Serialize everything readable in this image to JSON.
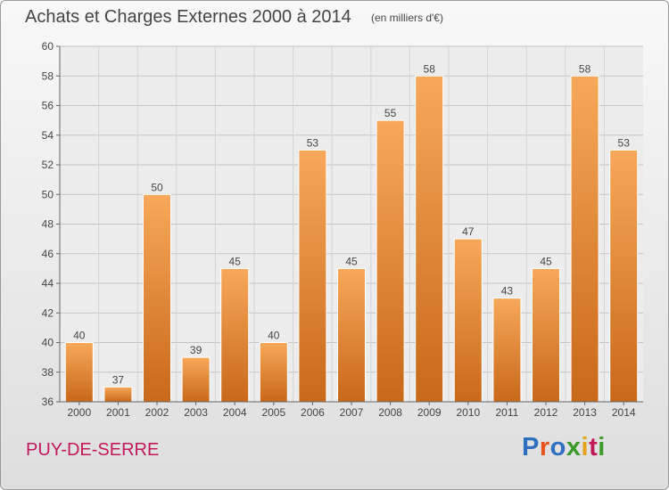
{
  "header": {
    "title": "Achats et Charges Externes 2000 à 2014",
    "units": "(en milliers d'€)"
  },
  "footer": {
    "commune": "PUY-DE-SERRE",
    "logo_text": "Proxiti",
    "logo_colors": [
      "#2f6fc0",
      "#e8541c",
      "#2f6fc0",
      "#3a9a2a",
      "#e6a31a",
      "#c2185b",
      "#3a9a2a"
    ]
  },
  "chart_data": {
    "type": "bar",
    "categories": [
      "2000",
      "2001",
      "2002",
      "2003",
      "2004",
      "2005",
      "2006",
      "2007",
      "2008",
      "2009",
      "2010",
      "2011",
      "2012",
      "2013",
      "2014"
    ],
    "values": [
      40,
      37,
      50,
      39,
      45,
      40,
      53,
      45,
      55,
      58,
      47,
      43,
      45,
      58,
      53
    ],
    "title": "Achats et Charges Externes 2000 à 2014",
    "ylim": [
      36,
      60
    ],
    "yticks": [
      36,
      38,
      40,
      42,
      44,
      46,
      48,
      50,
      52,
      54,
      56,
      58,
      60
    ],
    "grid": true,
    "bar_color": "#f0923a",
    "data_labels": true
  }
}
